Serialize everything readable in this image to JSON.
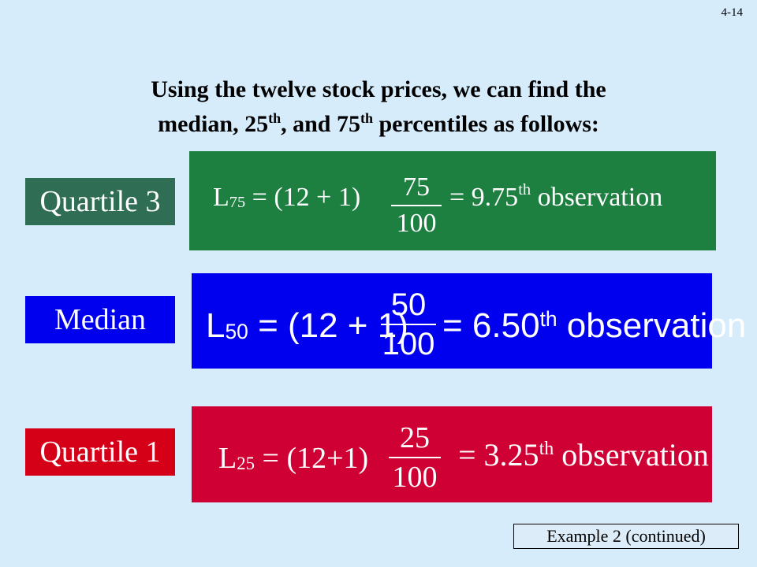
{
  "slide_number": "4-14",
  "heading": {
    "line1": "Using the twelve stock prices, we can find the",
    "line2_a": "median, 25",
    "line2_sup1": "th",
    "line2_b": ", and 75",
    "line2_sup2": "th",
    "line2_c": " percentiles as follows:"
  },
  "rows": [
    {
      "label": "Quartile 3",
      "symbol": "L",
      "subscript": "75",
      "equals_expr": " = (12 + 1)",
      "numerator": "75",
      "denominator": "100",
      "result_value": "= 9.75",
      "result_sup": "th",
      "result_word": " observation"
    },
    {
      "label": "Median",
      "symbol": "L",
      "subscript": "50",
      "equals_expr": " = (12 + 1)",
      "numerator": "50",
      "denominator": "100",
      "result_value": "= 6.50",
      "result_sup": "th",
      "result_word": " observation"
    },
    {
      "label": "Quartile 1",
      "symbol": "L",
      "subscript": "25",
      "equals_expr": " = (12+1)",
      "numerator": "25",
      "denominator": "100",
      "result_value": "= 3.25",
      "result_sup": "th",
      "result_word": " observation"
    }
  ],
  "caption": "Example 2 (continued)",
  "colors": {
    "background": "#d6ecfb",
    "quartile3_label": "#2f6e54",
    "quartile3_box": "#1d7f40",
    "median": "#0000ee",
    "quartile1_label": "#d50017",
    "quartile1_box": "#cf0033"
  }
}
